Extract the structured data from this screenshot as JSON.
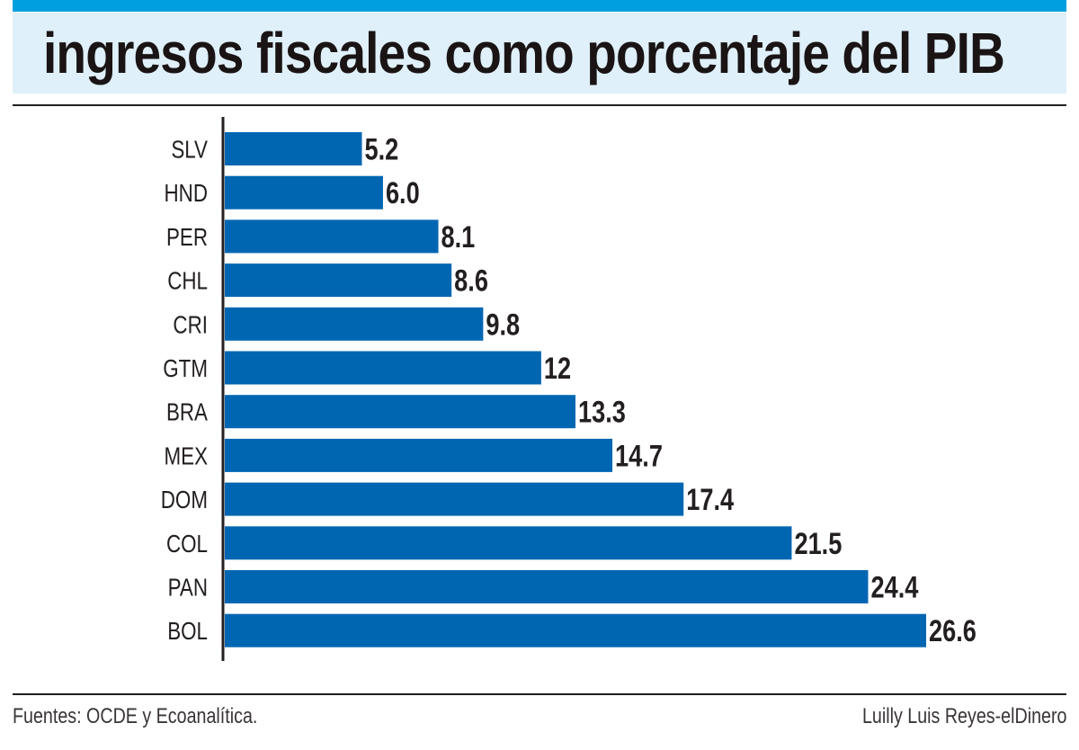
{
  "title": "ingresos fiscales como porcentaje del PIB",
  "footer": {
    "source": "Fuentes: OCDE y Ecoanalítica.",
    "credit": "Luilly Luis Reyes-elDinero"
  },
  "colors": {
    "bar": "#0066b2",
    "top_band": "#00a0e0",
    "title_band": "#dff0fa"
  },
  "chart_data": {
    "type": "bar",
    "orientation": "horizontal",
    "title": "ingresos fiscales como porcentaje del PIB",
    "xlabel": "",
    "ylabel": "",
    "categories": [
      "SLV",
      "HND",
      "PER",
      "CHL",
      "CRI",
      "GTM",
      "BRA",
      "MEX",
      "DOM",
      "COL",
      "PAN",
      "BOL"
    ],
    "values": [
      5.2,
      6.0,
      8.1,
      8.6,
      9.8,
      12,
      13.3,
      14.7,
      17.4,
      21.5,
      24.4,
      26.6
    ],
    "labels": [
      "5.2",
      "6.0",
      "8.1",
      "8.6",
      "9.8",
      "12",
      "13.3",
      "14.7",
      "17.4",
      "21.5",
      "24.4",
      "26.6"
    ],
    "xlim": [
      0,
      26.6
    ],
    "grid": false
  }
}
